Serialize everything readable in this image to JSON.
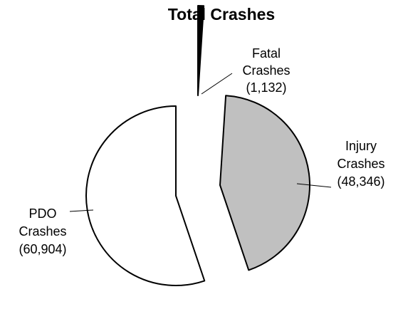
{
  "chart_data": {
    "type": "pie",
    "title": "Total Crashes",
    "exploded": true,
    "slices": [
      {
        "name_lines": [
          "Fatal",
          "Crashes"
        ],
        "value": 1132,
        "value_label": "(1,132)",
        "color": "#000000"
      },
      {
        "name_lines": [
          "Injury",
          "Crashes"
        ],
        "value": 48346,
        "value_label": "(48,346)",
        "color": "#c0c0c0"
      },
      {
        "name_lines": [
          "PDO",
          "Crashes"
        ],
        "value": 60904,
        "value_label": "(60,904)",
        "color": "#ffffff"
      }
    ]
  }
}
